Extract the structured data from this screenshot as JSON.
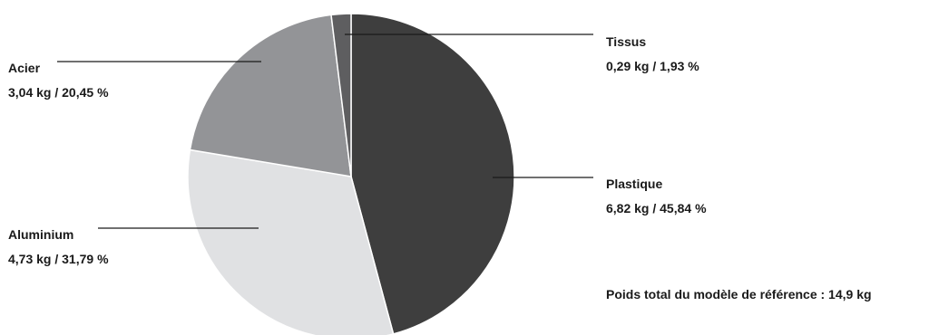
{
  "chart_data": {
    "type": "pie",
    "title": "",
    "unit": "kg",
    "slices": [
      {
        "name": "Plastique",
        "value": 6.82,
        "percent": 45.84,
        "value_label": "6,82 kg / 45,84 %",
        "color": "#3e3e3e"
      },
      {
        "name": "Aluminium",
        "value": 4.73,
        "percent": 31.79,
        "value_label": "4,73 kg / 31,79 %",
        "color": "#e0e1e3"
      },
      {
        "name": "Acier",
        "value": 3.04,
        "percent": 20.45,
        "value_label": "3,04 kg / 20,45 %",
        "color": "#939497"
      },
      {
        "name": "Tissus",
        "value": 0.29,
        "percent": 1.93,
        "value_label": "0,29 kg / 1,93 %",
        "color": "#5e5e60"
      }
    ],
    "note": "Poids total du modèle de référence : 14,9 kg",
    "legend": "none"
  }
}
